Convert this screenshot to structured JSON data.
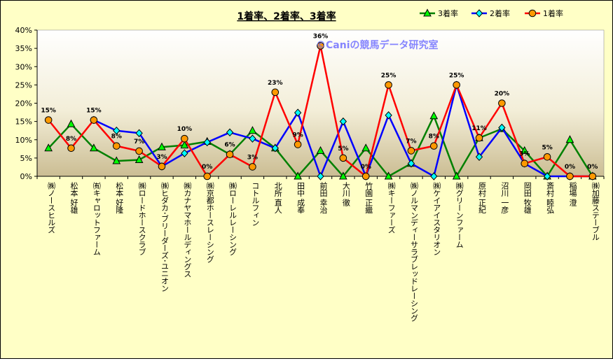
{
  "chart_data": {
    "type": "line",
    "title": "1着率、2着率、3着率",
    "watermark": "©Caniの競馬データ研究室",
    "ylim": [
      0,
      40
    ],
    "yticks": [
      "0%",
      "5%",
      "10%",
      "15%",
      "20%",
      "25%",
      "30%",
      "35%",
      "40%"
    ],
    "grid": false,
    "legend_position": "top-right",
    "categories": [
      "㈱ノースヒルズ",
      "松本 好雄",
      "㈲キャロットファーム",
      "松本 好隆",
      "㈱ロードホースクラブ",
      "㈱ヒダカ･ブリーダーズ･ユニオン",
      "㈱カナヤマホールディングス",
      "㈱京都ホースレーシング",
      "㈱ローレルレーシング",
      "コトルフィン",
      "北所 直人",
      "田中 成奉",
      "前田 幸治",
      "大川 徹",
      "竹園 正繼",
      "㈱キーファーズ",
      "㈱ノルマンディーサラブレッドレーシング",
      "㈱ケイアイスタリオン",
      "㈱グリーンファーム",
      "原村 正紀",
      "沼川 一彦",
      "岡田 牧雄",
      "斎村 睦弘",
      "稲場 澄",
      "㈱加藤ステーブル"
    ],
    "series": [
      {
        "name": "3着率",
        "color": "#008000",
        "marker": "triangle",
        "marker_fill": "#00ff00",
        "values": [
          7.7,
          14.3,
          7.7,
          4.2,
          4.5,
          8.0,
          8.5,
          9.5,
          6.0,
          12.5,
          7.7,
          0,
          7.0,
          0,
          7.7,
          0,
          3.5,
          16.5,
          0,
          10.5,
          13.0,
          7.0,
          0,
          10.0,
          0
        ]
      },
      {
        "name": "2着率",
        "color": "#0000ff",
        "marker": "diamond",
        "marker_fill": "#00ffff",
        "values": [
          null,
          null,
          15.4,
          12.5,
          11.8,
          2.7,
          6.3,
          9.3,
          12.0,
          10.3,
          7.7,
          17.4,
          0,
          15.0,
          0,
          16.7,
          3.5,
          0,
          25.0,
          5.3,
          13.3,
          3.5,
          0,
          0,
          0
        ]
      },
      {
        "name": "1着率",
        "color": "#ff0000",
        "marker": "circle",
        "marker_fill": "#ff9900",
        "values": [
          15.4,
          7.7,
          15.4,
          8.3,
          6.9,
          2.7,
          10.3,
          0,
          6.0,
          2.6,
          23.0,
          8.7,
          35.7,
          5.0,
          0,
          25.0,
          7.0,
          8.3,
          25.0,
          10.5,
          20.0,
          3.5,
          5.3,
          0,
          0
        ],
        "labels": [
          "15%",
          "8%",
          "15%",
          "8%",
          "7%",
          "3%",
          "10%",
          "0%",
          "6%",
          "3%",
          "23%",
          "9%",
          "36%",
          "5%",
          "0%",
          "25%",
          "7%",
          "8%",
          "25%",
          "11%",
          "20%",
          "3%",
          "5%",
          "0%",
          "0%"
        ]
      }
    ]
  }
}
